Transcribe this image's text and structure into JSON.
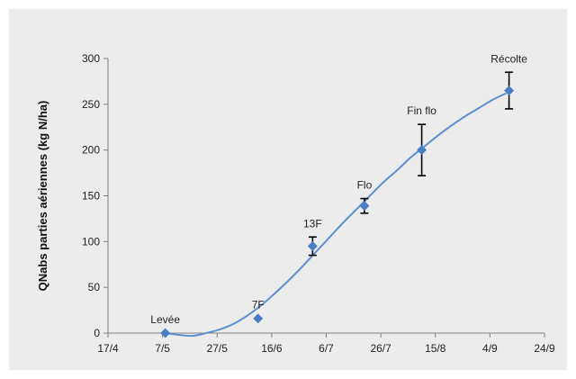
{
  "chart_data": {
    "type": "scatter",
    "title": "",
    "xlabel": "",
    "ylabel": "QNabs parties aériennes (kg N/ha)",
    "xlim": [
      "17/4",
      "24/9"
    ],
    "ylim": [
      0,
      300
    ],
    "x_tick_labels": [
      "17/4",
      "7/5",
      "27/5",
      "16/6",
      "6/7",
      "26/7",
      "15/8",
      "4/9",
      "24/9"
    ],
    "y_tick_labels": [
      "0",
      "50",
      "100",
      "150",
      "200",
      "250",
      "300"
    ],
    "grid": false,
    "legend": "none",
    "colors": {
      "plot_background": "#ececec",
      "series": "#4a7ec2",
      "curve": "#5b8fcf",
      "error_bar": "#000000"
    },
    "points": [
      {
        "label": "Levée",
        "x": "8/5",
        "y": 0,
        "err_low": 0,
        "err_high": 0
      },
      {
        "label": "7F",
        "x": "11/6",
        "y": 16,
        "err_low": 0,
        "err_high": 0
      },
      {
        "label": "13F",
        "x": "1/7",
        "y": 95,
        "err_low": 10,
        "err_high": 10
      },
      {
        "label": "Flo",
        "x": "20/7",
        "y": 139,
        "err_low": 8,
        "err_high": 8
      },
      {
        "label": "Fin flo",
        "x": "10/8",
        "y": 200,
        "err_low": 28,
        "err_high": 28
      },
      {
        "label": "Récolte",
        "x": "11/9",
        "y": 265,
        "err_low": 20,
        "err_high": 20
      }
    ],
    "fitted_curve": {
      "type": "sigmoid",
      "x": [
        "8/5",
        "13/5",
        "18/5",
        "23/5",
        "28/5",
        "2/6",
        "7/6",
        "12/6",
        "17/6",
        "22/6",
        "27/6",
        "2/7",
        "7/7",
        "12/7",
        "17/7",
        "22/7",
        "27/7",
        "1/8",
        "6/8",
        "11/8",
        "16/8",
        "21/8",
        "26/8",
        "31/8",
        "5/9",
        "10/9"
      ],
      "y": [
        0,
        -2,
        -3,
        0,
        4,
        10,
        19,
        30,
        43,
        57,
        72,
        88,
        104,
        120,
        135,
        150,
        165,
        178,
        192,
        204,
        216,
        227,
        237,
        246,
        255,
        262
      ]
    }
  }
}
